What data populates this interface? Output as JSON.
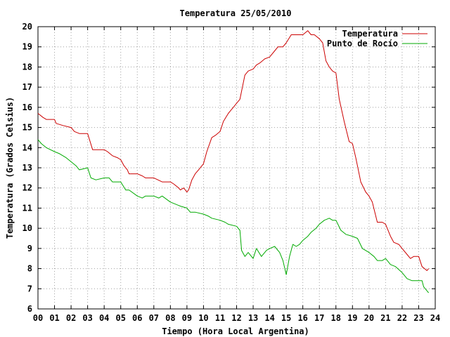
{
  "chart_data": {
    "type": "line",
    "title": "Temperatura 25/05/2010",
    "xlabel": "Tiempo (Hora Local Argentina)",
    "ylabel": "Temperatura (Grados Celsius)",
    "xlim": [
      0,
      24
    ],
    "ylim": [
      6,
      20
    ],
    "x_ticks": [
      "00",
      "01",
      "02",
      "03",
      "04",
      "05",
      "06",
      "07",
      "08",
      "09",
      "10",
      "11",
      "12",
      "13",
      "14",
      "15",
      "16",
      "17",
      "18",
      "19",
      "20",
      "21",
      "22",
      "23",
      "24"
    ],
    "y_ticks": [
      "6",
      "7",
      "8",
      "9",
      "10",
      "11",
      "12",
      "13",
      "14",
      "15",
      "16",
      "17",
      "18",
      "19",
      "20"
    ],
    "grid": true,
    "legend_position": "top-right",
    "series": [
      {
        "name": "Temperatura",
        "color": "#cc0000",
        "x": [
          0.0,
          0.3,
          0.5,
          1.0,
          1.1,
          1.5,
          2.0,
          2.2,
          2.5,
          3.0,
          3.3,
          3.5,
          4.0,
          4.2,
          4.5,
          4.8,
          5.0,
          5.2,
          5.4,
          5.5,
          6.0,
          6.3,
          6.5,
          7.0,
          7.5,
          8.0,
          8.2,
          8.5,
          8.6,
          8.8,
          9.0,
          9.1,
          9.3,
          9.5,
          9.7,
          10.0,
          10.2,
          10.5,
          10.7,
          11.0,
          11.2,
          11.5,
          11.6,
          11.8,
          12.0,
          12.2,
          12.5,
          12.7,
          13.0,
          13.2,
          13.4,
          13.7,
          14.0,
          14.3,
          14.5,
          14.8,
          15.0,
          15.3,
          15.5,
          15.8,
          16.0,
          16.3,
          16.5,
          16.7,
          17.0,
          17.2,
          17.4,
          17.6,
          17.8,
          18.0,
          18.2,
          18.5,
          18.8,
          19.0,
          19.2,
          19.5,
          19.8,
          20.0,
          20.2,
          20.5,
          20.8,
          21.0,
          21.3,
          21.5,
          21.8,
          22.0,
          22.3,
          22.5,
          22.7,
          23.0,
          23.2,
          23.5,
          23.6
        ],
        "values": [
          15.7,
          15.5,
          15.4,
          15.4,
          15.2,
          15.1,
          15.0,
          14.8,
          14.7,
          14.7,
          13.9,
          13.9,
          13.9,
          13.8,
          13.6,
          13.5,
          13.4,
          13.1,
          12.9,
          12.7,
          12.7,
          12.6,
          12.5,
          12.5,
          12.3,
          12.3,
          12.2,
          12.0,
          11.9,
          12.0,
          11.8,
          11.9,
          12.4,
          12.7,
          12.9,
          13.2,
          13.8,
          14.5,
          14.6,
          14.8,
          15.3,
          15.7,
          15.8,
          16.0,
          16.2,
          16.4,
          17.6,
          17.8,
          17.9,
          18.1,
          18.2,
          18.4,
          18.5,
          18.8,
          19.0,
          19.0,
          19.2,
          19.6,
          19.6,
          19.6,
          19.6,
          19.8,
          19.6,
          19.6,
          19.4,
          19.2,
          18.3,
          18.0,
          17.8,
          17.7,
          16.4,
          15.3,
          14.3,
          14.2,
          13.5,
          12.3,
          11.8,
          11.6,
          11.3,
          10.3,
          10.3,
          10.2,
          9.6,
          9.3,
          9.2,
          9.0,
          8.7,
          8.5,
          8.6,
          8.6,
          8.1,
          7.9,
          8.0
        ]
      },
      {
        "name": "Punto de Rocío",
        "color": "#00aa00",
        "x": [
          0.0,
          0.2,
          0.5,
          1.0,
          1.3,
          1.7,
          2.0,
          2.3,
          2.5,
          3.0,
          3.2,
          3.5,
          4.0,
          4.3,
          4.5,
          5.0,
          5.3,
          5.5,
          6.0,
          6.3,
          6.5,
          7.0,
          7.3,
          7.5,
          8.0,
          8.3,
          8.6,
          9.0,
          9.2,
          9.5,
          10.0,
          10.3,
          10.5,
          11.0,
          11.3,
          11.5,
          12.0,
          12.2,
          12.3,
          12.5,
          12.7,
          13.0,
          13.2,
          13.5,
          13.8,
          14.0,
          14.3,
          14.6,
          14.8,
          15.0,
          15.2,
          15.4,
          15.6,
          15.8,
          16.0,
          16.3,
          16.5,
          16.8,
          17.0,
          17.3,
          17.6,
          17.8,
          18.0,
          18.3,
          18.6,
          19.0,
          19.3,
          19.6,
          20.0,
          20.3,
          20.5,
          20.8,
          21.0,
          21.3,
          21.6,
          22.0,
          22.3,
          22.6,
          23.0,
          23.2,
          23.3,
          23.5,
          23.6
        ],
        "values": [
          14.4,
          14.2,
          14.0,
          13.8,
          13.7,
          13.5,
          13.3,
          13.1,
          12.9,
          13.0,
          12.5,
          12.4,
          12.5,
          12.5,
          12.3,
          12.3,
          11.9,
          11.9,
          11.6,
          11.5,
          11.6,
          11.6,
          11.5,
          11.6,
          11.3,
          11.2,
          11.1,
          11.0,
          10.8,
          10.8,
          10.7,
          10.6,
          10.5,
          10.4,
          10.3,
          10.2,
          10.1,
          9.9,
          8.9,
          8.6,
          8.8,
          8.5,
          9.0,
          8.6,
          8.9,
          9.0,
          9.1,
          8.8,
          8.4,
          7.7,
          8.6,
          9.2,
          9.1,
          9.2,
          9.4,
          9.6,
          9.8,
          10.0,
          10.2,
          10.4,
          10.5,
          10.4,
          10.4,
          9.9,
          9.7,
          9.6,
          9.5,
          9.0,
          8.8,
          8.6,
          8.4,
          8.4,
          8.5,
          8.2,
          8.1,
          7.8,
          7.5,
          7.4,
          7.4,
          7.4,
          7.1,
          6.9,
          6.8
        ]
      }
    ]
  }
}
